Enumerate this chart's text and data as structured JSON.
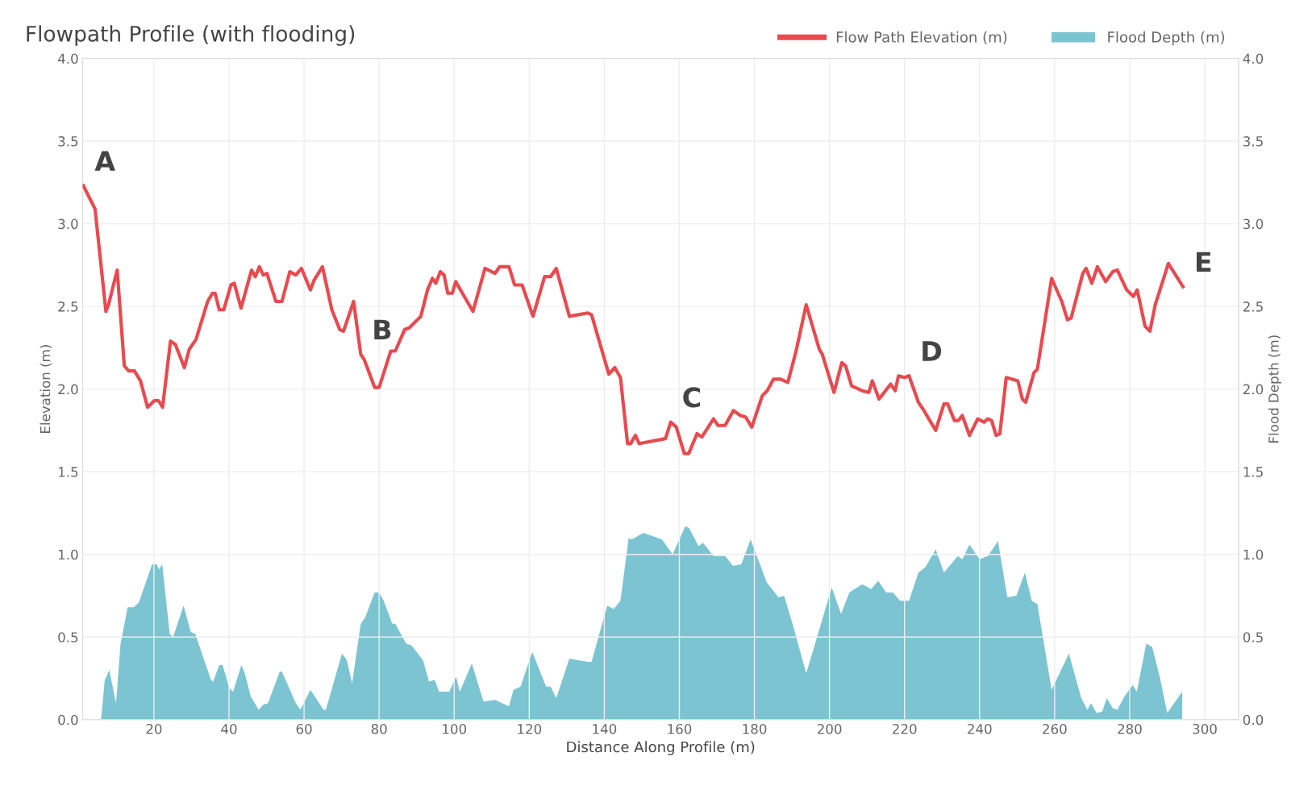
{
  "chart_data": {
    "type": "line",
    "title": "Flowpath Profile (with flooding)",
    "xlabel": "Distance Along Profile (m)",
    "ylabel": "Elevation (m)",
    "y2label": "Flood Depth (m)",
    "series": [
      {
        "name": "Flow Path Elevation (m)",
        "color": "#e84a4f",
        "x": [
          1.2,
          4.3,
          7.2,
          7.9,
          10.2,
          12.1,
          13.3,
          14.8,
          16.4,
          18.3,
          20.1,
          21.2,
          22.3,
          24.4,
          25.7,
          28.1,
          29.4,
          31.2,
          34.3,
          35.6,
          36.3,
          37.4,
          38.6,
          40.5,
          41.4,
          43.2,
          46.0,
          47.0,
          48.1,
          49.1,
          50.1,
          52.5,
          54.1,
          56.2,
          57.8,
          59.3,
          61.7,
          62.7,
          64.9,
          67.4,
          69.5,
          70.5,
          73.2,
          75.1,
          76.0,
          78.8,
          80.0,
          83.1,
          84.3,
          86.8,
          88.0,
          91.1,
          92.9,
          94.2,
          95.1,
          96.3,
          97.3,
          98.3,
          99.5,
          100.4,
          105.0,
          108.2,
          110.9,
          112.1,
          114.6,
          116.1,
          118.1,
          121.0,
          124.1,
          125.7,
          127.2,
          130.7,
          135.6,
          136.6,
          141.2,
          142.8,
          144.3,
          146.2,
          147.0,
          148.3,
          149.3,
          156.3,
          157.7,
          159.2,
          161.3,
          162.5,
          164.7,
          166.0,
          169.1,
          170.3,
          172.2,
          174.4,
          176.3,
          177.7,
          179.3,
          182.1,
          183.4,
          185.1,
          187.0,
          188.9,
          191.1,
          193.8,
          197.3,
          198.1,
          201.2,
          203.3,
          204.3,
          205.9,
          208.7,
          210.5,
          211.4,
          213.2,
          216.3,
          217.5,
          218.4,
          220.0,
          221.2,
          223.7,
          224.9,
          228.3,
          230.5,
          231.5,
          233.3,
          234.4,
          235.4,
          237.3,
          239.5,
          241.2,
          242.2,
          243.2,
          244.4,
          245.4,
          247.1,
          250.2,
          251.4,
          252.3,
          254.5,
          255.4,
          259.2,
          261.9,
          263.4,
          264.4,
          267.5,
          268.4,
          269.9,
          271.4,
          273.6,
          275.5,
          276.7,
          279.2,
          281.0,
          282.0,
          284.1,
          285.4,
          286.8,
          290.3,
          294.2
        ],
        "values": [
          3.23,
          3.09,
          2.47,
          2.51,
          2.72,
          2.14,
          2.11,
          2.11,
          2.05,
          1.89,
          1.93,
          1.93,
          1.89,
          2.29,
          2.27,
          2.13,
          2.24,
          2.3,
          2.53,
          2.58,
          2.58,
          2.48,
          2.48,
          2.63,
          2.64,
          2.49,
          2.72,
          2.68,
          2.74,
          2.69,
          2.7,
          2.53,
          2.53,
          2.71,
          2.69,
          2.73,
          2.6,
          2.66,
          2.74,
          2.48,
          2.36,
          2.35,
          2.53,
          2.21,
          2.18,
          2.01,
          2.01,
          2.23,
          2.23,
          2.36,
          2.37,
          2.44,
          2.6,
          2.67,
          2.64,
          2.71,
          2.69,
          2.58,
          2.58,
          2.65,
          2.47,
          2.73,
          2.7,
          2.74,
          2.74,
          2.63,
          2.63,
          2.44,
          2.68,
          2.68,
          2.73,
          2.44,
          2.46,
          2.45,
          2.09,
          2.13,
          2.07,
          1.67,
          1.67,
          1.72,
          1.67,
          1.7,
          1.8,
          1.77,
          1.61,
          1.61,
          1.73,
          1.71,
          1.82,
          1.78,
          1.78,
          1.87,
          1.84,
          1.83,
          1.77,
          1.96,
          1.99,
          2.06,
          2.06,
          2.04,
          2.23,
          2.51,
          2.24,
          2.21,
          1.98,
          2.16,
          2.14,
          2.02,
          1.99,
          1.98,
          2.05,
          1.94,
          2.03,
          1.99,
          2.08,
          2.07,
          2.08,
          1.92,
          1.88,
          1.75,
          1.91,
          1.91,
          1.81,
          1.81,
          1.84,
          1.72,
          1.82,
          1.8,
          1.82,
          1.81,
          1.72,
          1.73,
          2.07,
          2.05,
          1.94,
          1.92,
          2.1,
          2.12,
          2.67,
          2.53,
          2.42,
          2.43,
          2.7,
          2.73,
          2.64,
          2.74,
          2.65,
          2.71,
          2.72,
          2.6,
          2.56,
          2.6,
          2.38,
          2.35,
          2.51,
          2.76,
          2.62
        ]
      },
      {
        "name": "Flood Depth (m)",
        "type": "area",
        "axis": "y2",
        "color": "#7cc4d1",
        "x": [
          5.9,
          6.9,
          8.1,
          9.9,
          11.1,
          13.0,
          14.6,
          16.0,
          19.5,
          20.7,
          21.4,
          22.2,
          24.2,
          25.1,
          27.9,
          29.8,
          31.0,
          35.2,
          35.8,
          37.4,
          38.3,
          40.1,
          41.1,
          43.3,
          44.2,
          45.8,
          47.9,
          49.1,
          50.4,
          53.5,
          54.1,
          57.8,
          59.0,
          61.7,
          65.2,
          65.8,
          70.1,
          71.4,
          72.8,
          75.1,
          76.3,
          78.8,
          80.0,
          81.2,
          83.5,
          84.3,
          87.2,
          88.6,
          91.7,
          93.3,
          94.8,
          96.0,
          98.7,
          100.5,
          101.5,
          104.7,
          107.8,
          110.9,
          114.6,
          115.8,
          117.7,
          120.8,
          124.5,
          125.7,
          127.2,
          130.7,
          135.6,
          136.6,
          140.8,
          142.5,
          144.3,
          146.5,
          147.3,
          150.4,
          155.4,
          158.2,
          161.6,
          162.6,
          165.1,
          166.3,
          169.1,
          172.2,
          174.3,
          176.5,
          179.0,
          183.3,
          186.4,
          187.9,
          190.3,
          193.8,
          196.3,
          200.6,
          203.1,
          205.3,
          208.7,
          211.1,
          213.0,
          215.1,
          216.9,
          218.8,
          221.2,
          223.7,
          225.5,
          228.3,
          230.5,
          234.2,
          235.4,
          237.3,
          240.0,
          242.2,
          244.9,
          247.4,
          249.8,
          252.1,
          253.9,
          255.4,
          259.2,
          263.8,
          267.1,
          268.7,
          269.7,
          271.2,
          272.7,
          273.9,
          275.5,
          276.7,
          278.6,
          280.8,
          281.9,
          284.4,
          286.0,
          288.1,
          290.0,
          294.0
        ],
        "values": [
          0.0,
          0.24,
          0.3,
          0.1,
          0.46,
          0.68,
          0.68,
          0.71,
          0.94,
          0.94,
          0.91,
          0.94,
          0.52,
          0.5,
          0.69,
          0.53,
          0.52,
          0.24,
          0.23,
          0.33,
          0.33,
          0.19,
          0.17,
          0.33,
          0.28,
          0.14,
          0.06,
          0.09,
          0.1,
          0.29,
          0.29,
          0.1,
          0.06,
          0.18,
          0.06,
          0.06,
          0.4,
          0.36,
          0.22,
          0.58,
          0.62,
          0.77,
          0.77,
          0.72,
          0.58,
          0.58,
          0.46,
          0.45,
          0.36,
          0.23,
          0.24,
          0.17,
          0.17,
          0.26,
          0.17,
          0.34,
          0.11,
          0.12,
          0.08,
          0.18,
          0.2,
          0.41,
          0.2,
          0.2,
          0.13,
          0.37,
          0.35,
          0.35,
          0.69,
          0.67,
          0.72,
          1.1,
          1.09,
          1.13,
          1.09,
          1.0,
          1.17,
          1.16,
          1.05,
          1.07,
          0.99,
          0.99,
          0.93,
          0.94,
          1.09,
          0.83,
          0.74,
          0.75,
          0.57,
          0.28,
          0.47,
          0.8,
          0.64,
          0.77,
          0.82,
          0.79,
          0.84,
          0.77,
          0.77,
          0.72,
          0.72,
          0.89,
          0.92,
          1.03,
          0.89,
          0.99,
          0.97,
          1.06,
          0.97,
          0.99,
          1.08,
          0.74,
          0.75,
          0.89,
          0.72,
          0.7,
          0.18,
          0.4,
          0.13,
          0.06,
          0.1,
          0.04,
          0.05,
          0.13,
          0.07,
          0.06,
          0.14,
          0.21,
          0.17,
          0.46,
          0.44,
          0.25,
          0.04,
          0.17
        ]
      }
    ],
    "xlim": [
      1,
      309
    ],
    "xticks": [
      20,
      40,
      60,
      80,
      100,
      120,
      140,
      160,
      180,
      200,
      220,
      240,
      260,
      280,
      300
    ],
    "ylim": [
      0,
      4
    ],
    "yticks": [
      {
        "value": 0,
        "label": "0.0"
      },
      {
        "value": 0.5,
        "label": "0.5"
      },
      {
        "value": 1,
        "label": "1.0"
      },
      {
        "value": 1.5,
        "label": "1.5"
      },
      {
        "value": 2,
        "label": "2.0"
      },
      {
        "value": 2.5,
        "label": "2.5"
      },
      {
        "value": 3,
        "label": "3.0"
      },
      {
        "value": 3.5,
        "label": "3.5"
      },
      {
        "value": 4,
        "label": "4.0"
      }
    ],
    "y2lim": [
      0,
      4
    ],
    "y2ticks": [
      {
        "value": 0,
        "label": "0.0"
      },
      {
        "value": 0.5,
        "label": "0.5"
      },
      {
        "value": 1,
        "label": "1.0"
      },
      {
        "value": 1.5,
        "label": "1.5"
      },
      {
        "value": 2,
        "label": "2.0"
      },
      {
        "value": 2.5,
        "label": "2.5"
      },
      {
        "value": 3,
        "label": "3.0"
      },
      {
        "value": 3.5,
        "label": "3.5"
      },
      {
        "value": 4,
        "label": "4.0"
      }
    ],
    "annotations": [
      {
        "text": "A",
        "x": 1.2,
        "y": 3.23
      },
      {
        "text": "B",
        "x": 75.1,
        "y": 2.21
      },
      {
        "text": "C",
        "x": 157.7,
        "y": 1.8
      },
      {
        "text": "D",
        "x": 221.2,
        "y": 2.08
      },
      {
        "text": "E",
        "x": 294.2,
        "y": 2.62
      }
    ],
    "grid": true,
    "legend": "top right",
    "line_style": "solid",
    "marker": "none"
  }
}
